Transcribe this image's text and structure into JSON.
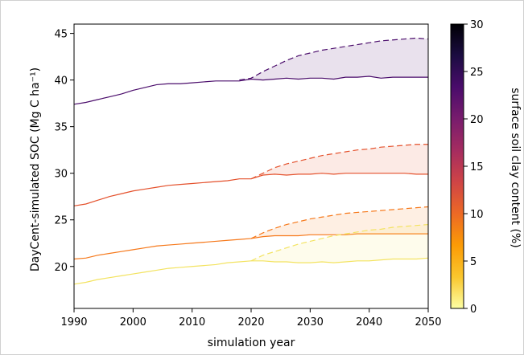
{
  "chart_data": {
    "type": "line",
    "xlabel": "simulation year",
    "ylabel": "DayCent-simulated SOC (Mg C ha⁻¹)",
    "xlim": [
      1990,
      2050
    ],
    "ylim": [
      15.5,
      46
    ],
    "xticks": [
      "1990",
      "2000",
      "2010",
      "2020",
      "2030",
      "2040",
      "2050"
    ],
    "yticks": [
      "20",
      "25",
      "30",
      "35",
      "40",
      "45"
    ],
    "grid": false,
    "colorbar": {
      "label": "surface soil clay content (%)",
      "range": [
        0,
        30
      ],
      "ticks": [
        "0",
        "5",
        "10",
        "15",
        "20",
        "25",
        "30"
      ],
      "colormap": [
        "#fcffa4",
        "#fac62d",
        "#fb9b06",
        "#ed6925",
        "#cf4446",
        "#a52c60",
        "#781c6d",
        "#4a0c6b",
        "#1b0c41",
        "#000004"
      ]
    },
    "series": [
      {
        "clay": 26,
        "color": "#4a0c6b",
        "baseline": {
          "x": [
            1990,
            1992,
            1994,
            1996,
            1998,
            2000,
            2002,
            2004,
            2006,
            2008,
            2010,
            2012,
            2014,
            2016,
            2018,
            2020,
            2022,
            2024,
            2026,
            2028,
            2030,
            2032,
            2034,
            2036,
            2038,
            2040,
            2042,
            2044,
            2046,
            2048,
            2050
          ],
          "y": [
            37.4,
            37.6,
            37.9,
            38.2,
            38.5,
            38.9,
            39.2,
            39.5,
            39.6,
            39.6,
            39.7,
            39.8,
            39.9,
            39.9,
            39.9,
            40.1,
            40.0,
            40.1,
            40.2,
            40.1,
            40.2,
            40.2,
            40.1,
            40.3,
            40.3,
            40.4,
            40.2,
            40.3,
            40.3,
            40.3,
            40.3
          ]
        },
        "scenario": {
          "x": [
            2018,
            2020,
            2022,
            2024,
            2026,
            2028,
            2030,
            2032,
            2034,
            2036,
            2038,
            2040,
            2042,
            2044,
            2046,
            2048,
            2050
          ],
          "y": [
            40.0,
            40.2,
            40.9,
            41.5,
            42.1,
            42.6,
            42.9,
            43.2,
            43.4,
            43.6,
            43.8,
            44.0,
            44.2,
            44.3,
            44.4,
            44.5,
            44.4
          ]
        }
      },
      {
        "clay": 15,
        "color": "#e4502b",
        "baseline": {
          "x": [
            1990,
            1992,
            1994,
            1996,
            1998,
            2000,
            2002,
            2004,
            2006,
            2008,
            2010,
            2012,
            2014,
            2016,
            2018,
            2020,
            2022,
            2024,
            2026,
            2028,
            2030,
            2032,
            2034,
            2036,
            2038,
            2040,
            2042,
            2044,
            2046,
            2048,
            2050
          ],
          "y": [
            26.5,
            26.7,
            27.1,
            27.5,
            27.8,
            28.1,
            28.3,
            28.5,
            28.7,
            28.8,
            28.9,
            29.0,
            29.1,
            29.2,
            29.4,
            29.4,
            29.8,
            29.9,
            29.8,
            29.9,
            29.9,
            30.0,
            29.9,
            30.0,
            30.0,
            30.0,
            30.0,
            30.0,
            30.0,
            29.9,
            29.9
          ]
        },
        "scenario": {
          "x": [
            2020,
            2022,
            2024,
            2026,
            2028,
            2030,
            2032,
            2034,
            2036,
            2038,
            2040,
            2042,
            2044,
            2046,
            2048,
            2050
          ],
          "y": [
            29.4,
            30.0,
            30.6,
            31.0,
            31.3,
            31.6,
            31.9,
            32.1,
            32.3,
            32.5,
            32.6,
            32.8,
            32.9,
            33.0,
            33.1,
            33.1
          ]
        }
      },
      {
        "clay": 11,
        "color": "#f6781a",
        "baseline": {
          "x": [
            1990,
            1992,
            1994,
            1996,
            1998,
            2000,
            2002,
            2004,
            2006,
            2008,
            2010,
            2012,
            2014,
            2016,
            2018,
            2020,
            2022,
            2024,
            2026,
            2028,
            2030,
            2032,
            2034,
            2036,
            2038,
            2040,
            2042,
            2044,
            2046,
            2048,
            2050
          ],
          "y": [
            20.8,
            20.9,
            21.2,
            21.4,
            21.6,
            21.8,
            22.0,
            22.2,
            22.3,
            22.4,
            22.5,
            22.6,
            22.7,
            22.8,
            22.9,
            23.0,
            23.2,
            23.3,
            23.3,
            23.3,
            23.4,
            23.4,
            23.4,
            23.4,
            23.5,
            23.5,
            23.5,
            23.5,
            23.5,
            23.5,
            23.5
          ]
        },
        "scenario": {
          "x": [
            2020,
            2022,
            2024,
            2026,
            2028,
            2030,
            2032,
            2034,
            2036,
            2038,
            2040,
            2042,
            2044,
            2046,
            2048,
            2050
          ],
          "y": [
            23.0,
            23.6,
            24.1,
            24.5,
            24.8,
            25.1,
            25.3,
            25.5,
            25.7,
            25.8,
            25.9,
            26.0,
            26.1,
            26.2,
            26.3,
            26.4
          ]
        }
      },
      {
        "clay": 3,
        "color": "#f3e360",
        "baseline": {
          "x": [
            1990,
            1992,
            1994,
            1996,
            1998,
            2000,
            2002,
            2004,
            2006,
            2008,
            2010,
            2012,
            2014,
            2016,
            2018,
            2020,
            2022,
            2024,
            2026,
            2028,
            2030,
            2032,
            2034,
            2036,
            2038,
            2040,
            2042,
            2044,
            2046,
            2048,
            2050
          ],
          "y": [
            18.1,
            18.3,
            18.6,
            18.8,
            19.0,
            19.2,
            19.4,
            19.6,
            19.8,
            19.9,
            20.0,
            20.1,
            20.2,
            20.4,
            20.5,
            20.6,
            20.6,
            20.5,
            20.5,
            20.4,
            20.4,
            20.5,
            20.4,
            20.5,
            20.6,
            20.6,
            20.7,
            20.8,
            20.8,
            20.8,
            20.9
          ]
        },
        "scenario": {
          "x": [
            2020,
            2022,
            2024,
            2026,
            2028,
            2030,
            2032,
            2034,
            2036,
            2038,
            2040,
            2042,
            2044,
            2046,
            2048,
            2050
          ],
          "y": [
            20.6,
            21.2,
            21.6,
            22.0,
            22.4,
            22.7,
            23.0,
            23.3,
            23.5,
            23.7,
            23.9,
            24.0,
            24.2,
            24.3,
            24.4,
            24.5
          ]
        }
      }
    ]
  }
}
